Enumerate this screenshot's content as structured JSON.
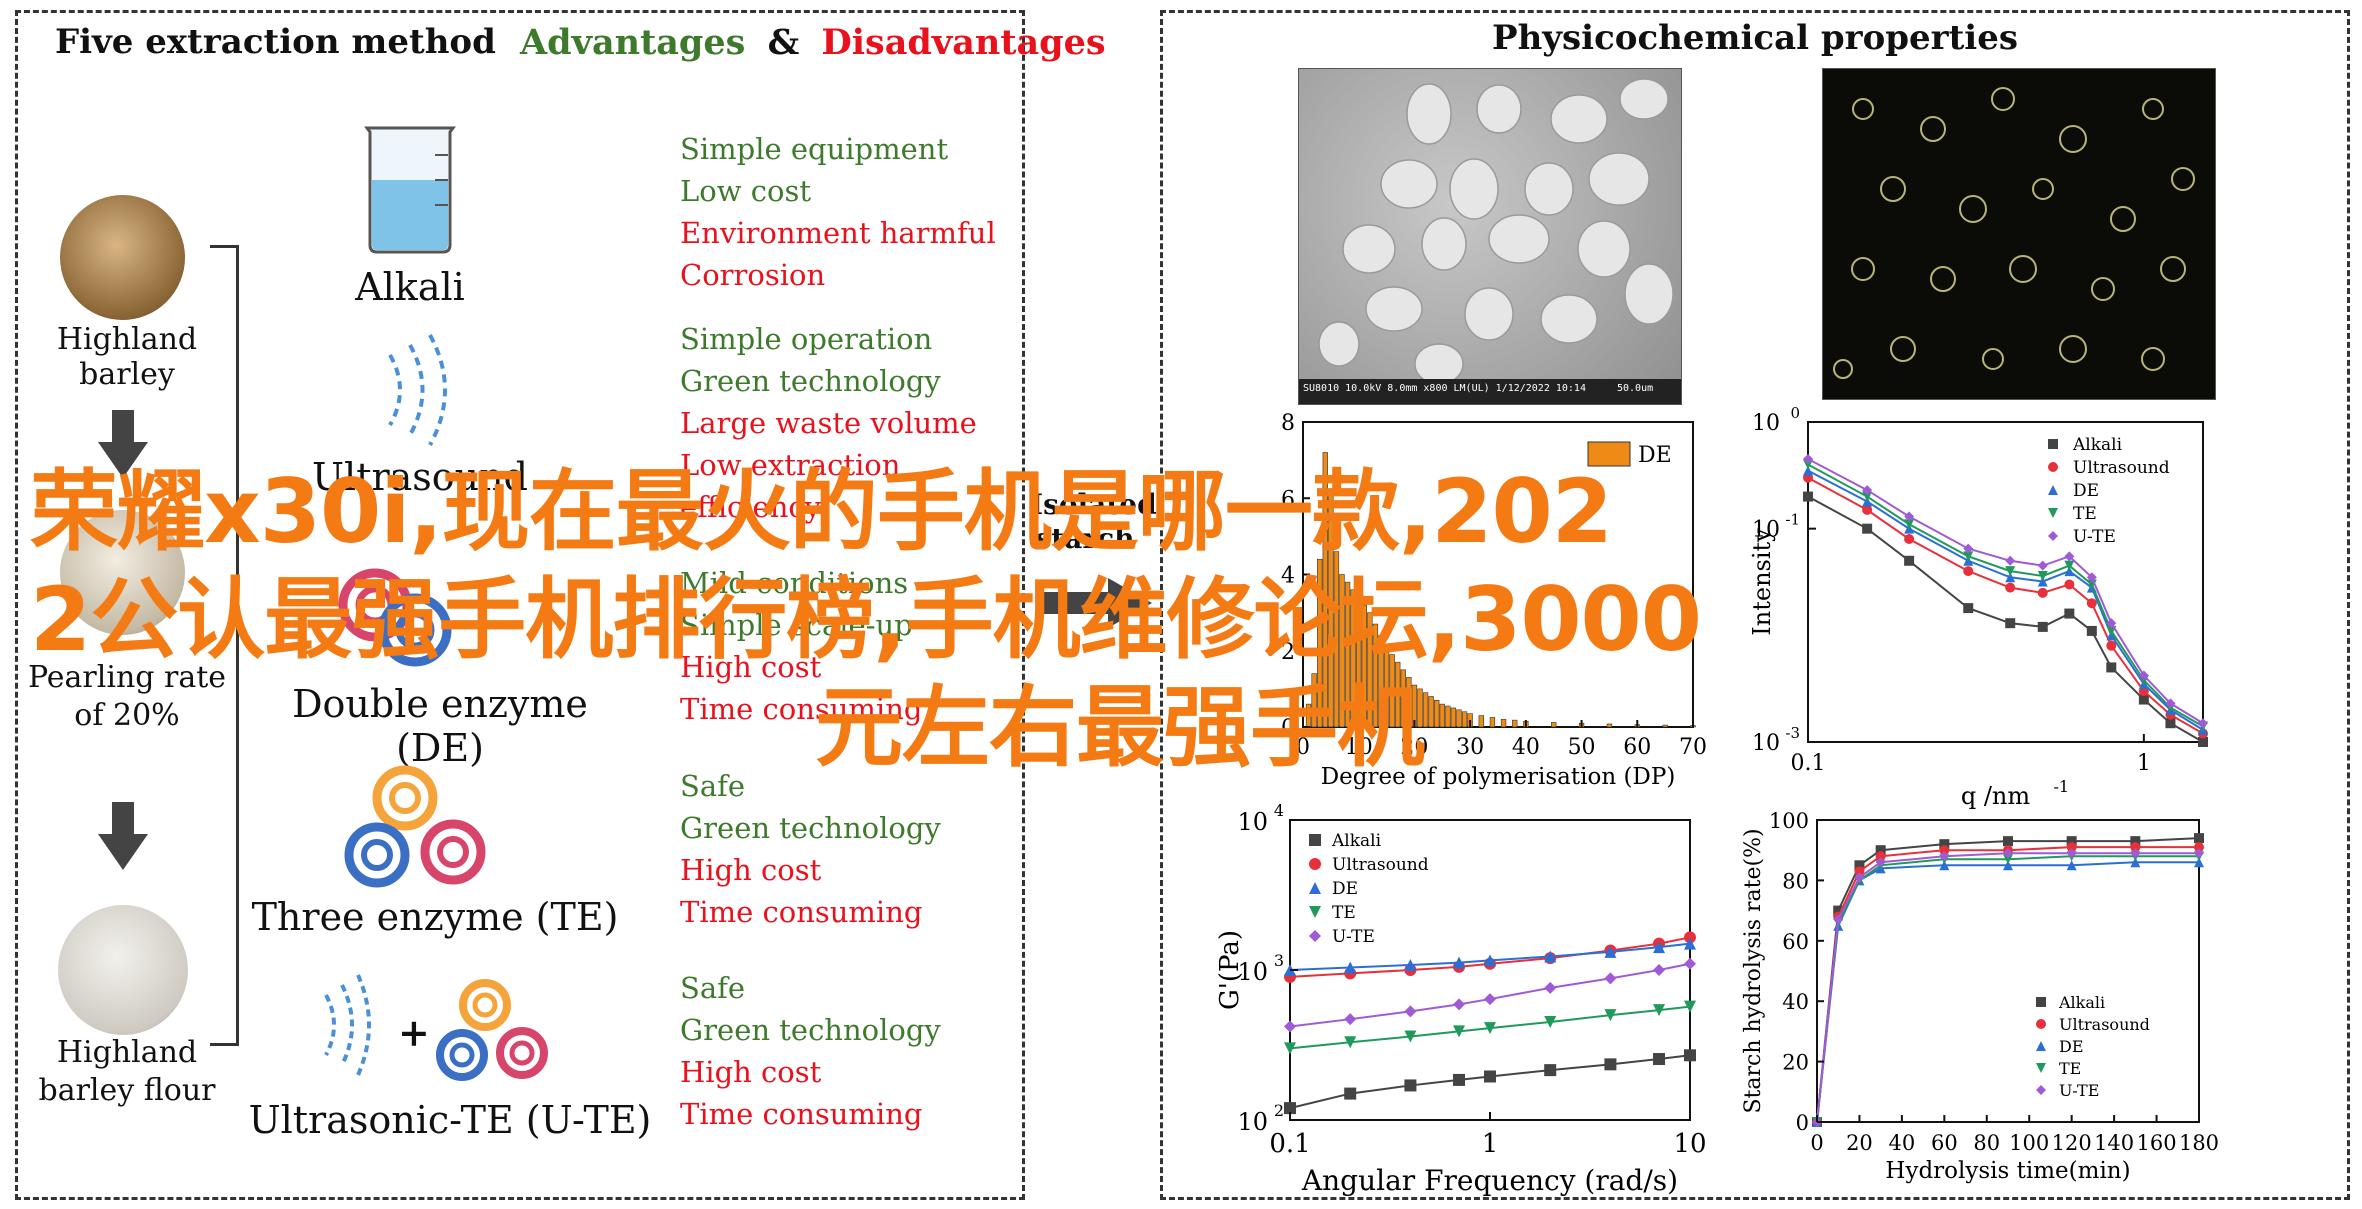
{
  "left_panel": {
    "title": "Five extraction method",
    "header_advantages": "Advantages",
    "header_amp": "&",
    "header_disadvantages": "Disadvantages",
    "materials": {
      "barley": "Highland barley",
      "pearling_line1": "Pearling rate",
      "pearling_line2": "of 20%",
      "flour_line1": "Highland",
      "flour_line2": "barley flour"
    },
    "methods": [
      {
        "name": "Alkali",
        "pros": [
          "Simple equipment",
          "Low cost"
        ],
        "cons": [
          "Environment harmful",
          "Corrosion"
        ]
      },
      {
        "name": "Ultrasound",
        "pros": [
          "Simple operation",
          "Green technology"
        ],
        "cons": [
          "Large waste volume",
          "Low extraction",
          "efficiency"
        ]
      },
      {
        "name": "Double enzyme (DE)",
        "pros": [
          "Mild conditions",
          "Simple scale-up"
        ],
        "cons": [
          "High cost",
          "Time consuming"
        ]
      },
      {
        "name": "Three enzyme (TE)",
        "pros": [
          "Safe",
          "Green technology"
        ],
        "cons": [
          "High cost",
          "Time consuming"
        ]
      },
      {
        "name": "Ultrasonic-TE (U-TE)",
        "pros": [
          "Safe",
          "Green technology"
        ],
        "cons": [
          "High cost",
          "Time consuming"
        ]
      }
    ],
    "plus_sign": "+",
    "middle_label_line1": "Isolated",
    "middle_label_line2": "starch"
  },
  "right_panel": {
    "title": "Physicochemical properties",
    "sem_caption": "SU8010 10.0kV 8.0mm x800 LM(UL) 1/12/2022 10:14",
    "sem_scale": "50.0um"
  },
  "overlay": {
    "line1": "荣耀x30i,现在最火的手机是哪一款,202",
    "line2": "2公认最强手机排行榜,手机维修论坛,3000",
    "line3": "元左右最强手机"
  },
  "chart_data": [
    {
      "type": "bar",
      "title": "",
      "xlabel": "Degree of polymerisation (DP)",
      "ylabel": "",
      "xlim": [
        0,
        70
      ],
      "ylim": [
        0,
        8
      ],
      "xticks": [
        "0",
        "10",
        "20",
        "30",
        "40",
        "50",
        "60",
        "70"
      ],
      "yticks": [
        "0",
        "2",
        "4",
        "6",
        "8"
      ],
      "series": [
        {
          "name": "DE",
          "color": "#f08a16",
          "x": [
            1,
            2,
            3,
            4,
            5,
            6,
            7,
            8,
            9,
            10,
            11,
            12,
            13,
            14,
            15,
            16,
            17,
            18,
            19,
            20,
            21,
            22,
            23,
            24,
            25,
            26,
            27,
            28,
            29,
            30,
            32,
            34,
            36,
            38,
            40,
            45,
            50,
            55,
            60,
            65,
            70
          ],
          "values": [
            0.6,
            1.4,
            4.4,
            7.2,
            6.1,
            4.6,
            4.0,
            3.8,
            3.6,
            3.4,
            3.2,
            3.0,
            2.7,
            2.4,
            2.1,
            1.9,
            1.7,
            1.5,
            1.3,
            1.1,
            1.0,
            0.9,
            0.8,
            0.7,
            0.6,
            0.55,
            0.5,
            0.45,
            0.4,
            0.35,
            0.3,
            0.25,
            0.2,
            0.18,
            0.15,
            0.12,
            0.1,
            0.08,
            0.06,
            0.05,
            0.04
          ]
        }
      ]
    },
    {
      "type": "line",
      "title": "",
      "xlabel": "q /nm",
      "xlabel_sup": "-1",
      "ylabel": "Intensity",
      "scale": "log",
      "xlim": [
        0.1,
        1.5
      ],
      "ylim": [
        0.001,
        1
      ],
      "yticks": [
        "10",
        "10",
        "10"
      ],
      "ytick_exp": [
        "0",
        "-1",
        "-3"
      ],
      "xticks": [
        "0.1",
        "1"
      ],
      "legend_position": "top-right",
      "x": [
        0.1,
        0.15,
        0.2,
        0.3,
        0.4,
        0.5,
        0.6,
        0.7,
        0.8,
        1.0,
        1.2,
        1.5
      ],
      "series": [
        {
          "name": "Alkali",
          "color": "#444444",
          "marker": "square",
          "values": [
            0.2,
            0.1,
            0.05,
            0.018,
            0.013,
            0.012,
            0.016,
            0.011,
            0.005,
            0.0025,
            0.0015,
            0.001
          ]
        },
        {
          "name": "Ultrasound",
          "color": "#e8303a",
          "marker": "circle",
          "values": [
            0.3,
            0.15,
            0.08,
            0.04,
            0.028,
            0.025,
            0.03,
            0.02,
            0.008,
            0.003,
            0.0018,
            0.0012
          ]
        },
        {
          "name": "DE",
          "color": "#2a6fd6",
          "marker": "triangle-up",
          "values": [
            0.35,
            0.18,
            0.1,
            0.05,
            0.035,
            0.032,
            0.04,
            0.028,
            0.01,
            0.0035,
            0.002,
            0.0013
          ]
        },
        {
          "name": "TE",
          "color": "#1f9a5a",
          "marker": "triangle-down",
          "values": [
            0.4,
            0.2,
            0.11,
            0.055,
            0.04,
            0.036,
            0.045,
            0.03,
            0.011,
            0.0038,
            0.0021,
            0.0014
          ]
        },
        {
          "name": "U-TE",
          "color": "#a05ad6",
          "marker": "diamond",
          "values": [
            0.45,
            0.23,
            0.13,
            0.065,
            0.05,
            0.045,
            0.055,
            0.035,
            0.013,
            0.0042,
            0.0023,
            0.0015
          ]
        }
      ]
    },
    {
      "type": "line",
      "title": "",
      "xlabel": "Angular Frequency (rad/s)",
      "ylabel": "G'(Pa)",
      "scale": "log",
      "xlim": [
        0.1,
        10
      ],
      "ylim": [
        100,
        10000
      ],
      "xticks": [
        "0.1",
        "1",
        "10"
      ],
      "yticks": [
        "10",
        "10",
        "10"
      ],
      "ytick_exp": [
        "4",
        "3",
        "2"
      ],
      "legend_position": "top-left",
      "x": [
        0.1,
        0.2,
        0.4,
        0.7,
        1,
        2,
        4,
        7,
        10
      ],
      "series": [
        {
          "name": "Alkali",
          "color": "#444444",
          "marker": "square",
          "values": [
            120,
            150,
            170,
            185,
            195,
            215,
            235,
            255,
            270
          ]
        },
        {
          "name": "Ultrasound",
          "color": "#e8303a",
          "marker": "circle",
          "values": [
            900,
            950,
            1000,
            1050,
            1100,
            1200,
            1350,
            1500,
            1650
          ]
        },
        {
          "name": "DE",
          "color": "#2a6fd6",
          "marker": "triangle-up",
          "values": [
            1000,
            1040,
            1080,
            1120,
            1160,
            1230,
            1320,
            1420,
            1500
          ]
        },
        {
          "name": "TE",
          "color": "#1f9a5a",
          "marker": "triangle-down",
          "values": [
            300,
            330,
            360,
            390,
            410,
            450,
            500,
            540,
            570
          ]
        },
        {
          "name": "U-TE",
          "color": "#a05ad6",
          "marker": "diamond",
          "values": [
            420,
            470,
            530,
            590,
            640,
            760,
            880,
            1000,
            1100
          ]
        }
      ]
    },
    {
      "type": "line",
      "title": "",
      "xlabel": "Hydrolysis time(min)",
      "ylabel": "Starch hydrolysis rate(%)",
      "xlim": [
        0,
        180
      ],
      "ylim": [
        0,
        100
      ],
      "xticks": [
        "0",
        "20",
        "40",
        "60",
        "80",
        "100",
        "120",
        "140",
        "160",
        "180"
      ],
      "yticks": [
        "0",
        "20",
        "40",
        "60",
        "80",
        "100"
      ],
      "legend_position": "bottom-right",
      "x": [
        0,
        10,
        20,
        30,
        60,
        90,
        120,
        150,
        180
      ],
      "series": [
        {
          "name": "Alkali",
          "color": "#444444",
          "marker": "square",
          "values": [
            0,
            70,
            85,
            90,
            92,
            93,
            93,
            93,
            94
          ]
        },
        {
          "name": "Ultrasound",
          "color": "#e8303a",
          "marker": "circle",
          "values": [
            0,
            68,
            83,
            88,
            90,
            90,
            91,
            91,
            91
          ]
        },
        {
          "name": "DE",
          "color": "#2a6fd6",
          "marker": "triangle-up",
          "values": [
            0,
            65,
            80,
            84,
            85,
            85,
            85,
            86,
            86
          ]
        },
        {
          "name": "TE",
          "color": "#1f9a5a",
          "marker": "triangle-down",
          "values": [
            0,
            66,
            80,
            85,
            87,
            87,
            88,
            88,
            88
          ]
        },
        {
          "name": "U-TE",
          "color": "#a05ad6",
          "marker": "diamond",
          "values": [
            0,
            67,
            81,
            86,
            88,
            89,
            89,
            89,
            89
          ]
        }
      ]
    }
  ],
  "colors": {
    "pro": "#3d7a2c",
    "con": "#e8111c",
    "overlay": "#f47a14",
    "enzyme_orange": "#f4a43a",
    "enzyme_blue": "#3b6fc4",
    "enzyme_pink": "#d8456a"
  }
}
